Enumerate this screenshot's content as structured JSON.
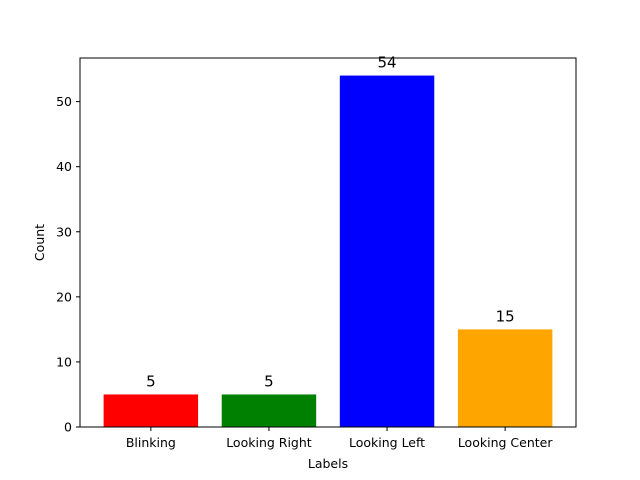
{
  "chart_data": {
    "type": "bar",
    "title": "",
    "xlabel": "Labels",
    "ylabel": "Count",
    "categories": [
      "Blinking",
      "Looking Right",
      "Looking Left",
      "Looking Center"
    ],
    "values": [
      5,
      5,
      54,
      15
    ],
    "data_labels": [
      "5",
      "5",
      "54",
      "15"
    ],
    "colors": [
      "#ff0000",
      "#008000",
      "#0000ff",
      "#ffa500"
    ],
    "ylim": [
      0,
      56.7
    ],
    "yticks": [
      0,
      10,
      20,
      30,
      40,
      50
    ],
    "ytick_labels": [
      "0",
      "10",
      "20",
      "30",
      "40",
      "50"
    ],
    "grid": false,
    "legend": "none"
  }
}
